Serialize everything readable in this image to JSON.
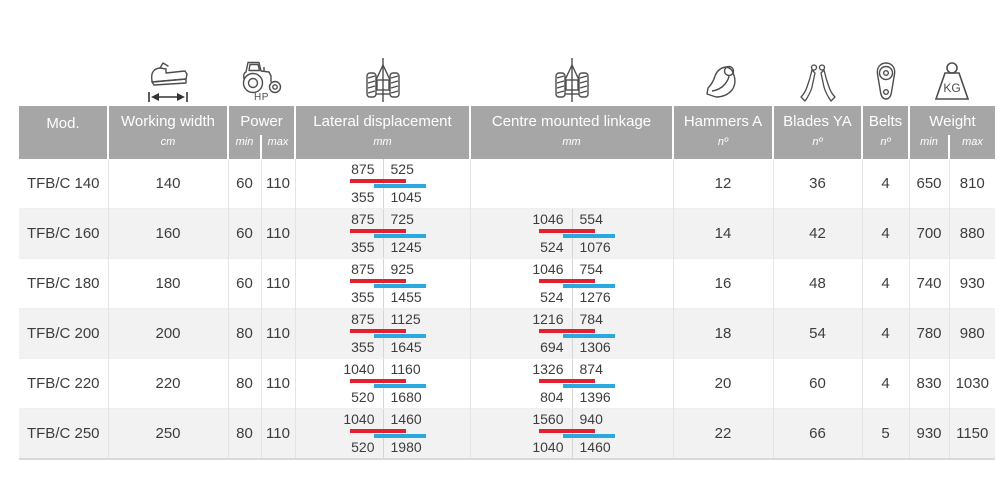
{
  "header": {
    "mod": "Mod.",
    "working_width": {
      "label": "Working width",
      "unit": "cm"
    },
    "power": {
      "label": "Power",
      "min": "min",
      "max": "max",
      "caption": "HP"
    },
    "lateral": {
      "label": "Lateral displacement",
      "unit": "mm"
    },
    "centre": {
      "label": "Centre mounted linkage",
      "unit": "mm"
    },
    "hammers": {
      "label": "Hammers A",
      "unit": "nº"
    },
    "blades": {
      "label": "Blades YA",
      "unit": "nº"
    },
    "belts": {
      "label": "Belts",
      "unit": "nº"
    },
    "weight": {
      "label": "Weight",
      "min": "min",
      "max": "max",
      "caption": "KG"
    }
  },
  "icons": {
    "working_width": "flail-mower-width-icon",
    "power": "tractor-icon",
    "lateral": "rear-linkage-icon",
    "centre": "rear-linkage-icon",
    "hammers": "hammer-flail-icon",
    "blades": "y-blade-icon",
    "belts": "belt-pulley-icon",
    "weight": "kg-weight-icon"
  },
  "colors": {
    "header_bg": "#a6a6a6",
    "red_bar": "#e2202e",
    "blue_bar": "#2aa8e0",
    "row_alt_bg": "#f2f2f2",
    "body_text": "#3d3d3d"
  },
  "rows": [
    {
      "model": "TFB/C 140",
      "working_width": "140",
      "power_min": "60",
      "power_max": "110",
      "lateral": {
        "top_left": "875",
        "top_right": "525",
        "bottom_left": "355",
        "bottom_right": "1045"
      },
      "centre": null,
      "hammers": "12",
      "blades": "36",
      "belts": "4",
      "weight_min": "650",
      "weight_max": "810"
    },
    {
      "model": "TFB/C 160",
      "working_width": "160",
      "power_min": "60",
      "power_max": "110",
      "lateral": {
        "top_left": "875",
        "top_right": "725",
        "bottom_left": "355",
        "bottom_right": "1245"
      },
      "centre": {
        "top_left": "1046",
        "top_right": "554",
        "bottom_left": "524",
        "bottom_right": "1076"
      },
      "hammers": "14",
      "blades": "42",
      "belts": "4",
      "weight_min": "700",
      "weight_max": "880"
    },
    {
      "model": "TFB/C 180",
      "working_width": "180",
      "power_min": "60",
      "power_max": "110",
      "lateral": {
        "top_left": "875",
        "top_right": "925",
        "bottom_left": "355",
        "bottom_right": "1455"
      },
      "centre": {
        "top_left": "1046",
        "top_right": "754",
        "bottom_left": "524",
        "bottom_right": "1276"
      },
      "hammers": "16",
      "blades": "48",
      "belts": "4",
      "weight_min": "740",
      "weight_max": "930"
    },
    {
      "model": "TFB/C 200",
      "working_width": "200",
      "power_min": "80",
      "power_max": "110",
      "lateral": {
        "top_left": "875",
        "top_right": "1125",
        "bottom_left": "355",
        "bottom_right": "1645"
      },
      "centre": {
        "top_left": "1216",
        "top_right": "784",
        "bottom_left": "694",
        "bottom_right": "1306"
      },
      "hammers": "18",
      "blades": "54",
      "belts": "4",
      "weight_min": "780",
      "weight_max": "980"
    },
    {
      "model": "TFB/C 220",
      "working_width": "220",
      "power_min": "80",
      "power_max": "110",
      "lateral": {
        "top_left": "1040",
        "top_right": "1160",
        "bottom_left": "520",
        "bottom_right": "1680"
      },
      "centre": {
        "top_left": "1326",
        "top_right": "874",
        "bottom_left": "804",
        "bottom_right": "1396"
      },
      "hammers": "20",
      "blades": "60",
      "belts": "4",
      "weight_min": "830",
      "weight_max": "1030"
    },
    {
      "model": "TFB/C 250",
      "working_width": "250",
      "power_min": "80",
      "power_max": "110",
      "lateral": {
        "top_left": "1040",
        "top_right": "1460",
        "bottom_left": "520",
        "bottom_right": "1980"
      },
      "centre": {
        "top_left": "1560",
        "top_right": "940",
        "bottom_left": "1040",
        "bottom_right": "1460"
      },
      "hammers": "22",
      "blades": "66",
      "belts": "5",
      "weight_min": "930",
      "weight_max": "1150"
    }
  ]
}
